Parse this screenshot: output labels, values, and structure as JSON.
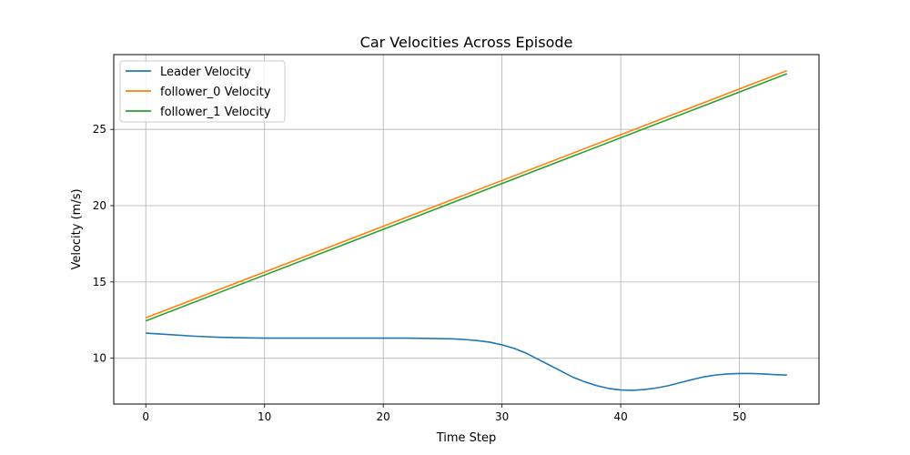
{
  "chart_data": {
    "type": "line",
    "title": "Car Velocities Across Episode",
    "xlabel": "Time Step",
    "ylabel": "Velocity (m/s)",
    "xlim": [
      -2.7,
      56.7
    ],
    "ylim": [
      7.0,
      29.9
    ],
    "xticks": [
      0,
      10,
      20,
      30,
      40,
      50
    ],
    "yticks": [
      10,
      15,
      20,
      25
    ],
    "grid": true,
    "legend_position": "top-left",
    "series": [
      {
        "name": "Leader Velocity",
        "color": "#1f77b4",
        "x": [
          0,
          2,
          4,
          6,
          8,
          10,
          12,
          14,
          16,
          18,
          20,
          22,
          24,
          26,
          27,
          28,
          29,
          30,
          31,
          32,
          33,
          34,
          35,
          36,
          37,
          38,
          39,
          40,
          41,
          42,
          43,
          44,
          45,
          46,
          47,
          48,
          49,
          50,
          51,
          52,
          53,
          54
        ],
        "values": [
          11.65,
          11.55,
          11.45,
          11.38,
          11.34,
          11.32,
          11.32,
          11.32,
          11.32,
          11.32,
          11.32,
          11.32,
          11.3,
          11.27,
          11.22,
          11.15,
          11.05,
          10.88,
          10.65,
          10.35,
          9.95,
          9.55,
          9.15,
          8.75,
          8.45,
          8.2,
          8.02,
          7.92,
          7.9,
          7.95,
          8.05,
          8.2,
          8.4,
          8.6,
          8.78,
          8.9,
          8.97,
          9.0,
          9.0,
          8.97,
          8.93,
          8.9
        ]
      },
      {
        "name": "follower_0 Velocity",
        "color": "#ff7f0e",
        "x": [
          0,
          54
        ],
        "values": [
          12.65,
          28.85
        ]
      },
      {
        "name": "follower_1 Velocity",
        "color": "#2ca02c",
        "x": [
          0,
          54
        ],
        "values": [
          12.45,
          28.65
        ]
      }
    ]
  }
}
